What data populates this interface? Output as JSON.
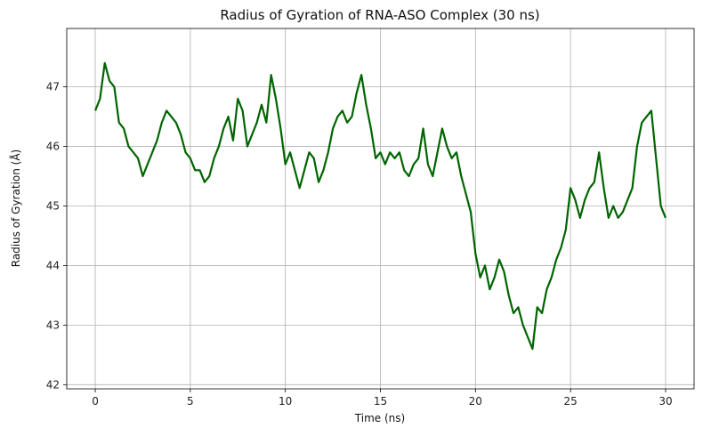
{
  "chart_data": {
    "type": "line",
    "title": "Radius of Gyration of RNA-ASO Complex (30 ns)",
    "xlabel": "Time (ns)",
    "ylabel": "Radius of Gyration (Å)",
    "xlim": [
      -1.5,
      31.5
    ],
    "ylim": [
      41.93,
      47.98
    ],
    "xticks": [
      0,
      5,
      10,
      15,
      20,
      25,
      30
    ],
    "yticks": [
      42,
      43,
      44,
      45,
      46,
      47
    ],
    "grid": true,
    "line_color": "#006400",
    "series": [
      {
        "x": [
          0,
          0.25,
          0.5,
          0.75,
          1,
          1.25,
          1.5,
          1.75,
          2,
          2.25,
          2.5,
          2.75,
          3,
          3.25,
          3.5,
          3.75,
          4,
          4.25,
          4.5,
          4.75,
          5,
          5.25,
          5.5,
          5.75,
          6,
          6.25,
          6.5,
          6.75,
          7,
          7.25,
          7.5,
          7.75,
          8,
          8.25,
          8.5,
          8.75,
          9,
          9.25,
          9.5,
          9.75,
          10,
          10.25,
          10.5,
          10.75,
          11,
          11.25,
          11.5,
          11.75,
          12,
          12.25,
          12.5,
          12.75,
          13,
          13.25,
          13.5,
          13.75,
          14,
          14.25,
          14.5,
          14.75,
          15,
          15.25,
          15.5,
          15.75,
          16,
          16.25,
          16.5,
          16.75,
          17,
          17.25,
          17.5,
          17.75,
          18,
          18.25,
          18.5,
          18.75,
          19,
          19.25,
          19.5,
          19.75,
          20,
          20.25,
          20.5,
          20.75,
          21,
          21.25,
          21.5,
          21.75,
          22,
          22.25,
          22.5,
          22.75,
          23,
          23.25,
          23.5,
          23.75,
          24,
          24.25,
          24.5,
          24.75,
          25,
          25.25,
          25.5,
          25.75,
          26,
          26.25,
          26.5,
          26.75,
          27,
          27.25,
          27.5,
          27.75,
          28,
          28.25,
          28.5,
          28.75,
          29,
          29.25,
          29.5,
          29.75,
          30
        ],
        "y": [
          46.6,
          46.8,
          47.4,
          47.1,
          47.0,
          46.4,
          46.3,
          46.0,
          45.9,
          45.8,
          45.5,
          45.7,
          45.9,
          46.1,
          46.4,
          46.6,
          46.5,
          46.4,
          46.2,
          45.9,
          45.8,
          45.6,
          45.6,
          45.4,
          45.5,
          45.8,
          46.0,
          46.3,
          46.5,
          46.1,
          46.8,
          46.6,
          46.0,
          46.2,
          46.4,
          46.7,
          46.4,
          47.2,
          46.8,
          46.3,
          45.7,
          45.9,
          45.6,
          45.3,
          45.6,
          45.9,
          45.8,
          45.4,
          45.6,
          45.9,
          46.3,
          46.5,
          46.6,
          46.4,
          46.5,
          46.9,
          47.2,
          46.7,
          46.3,
          45.8,
          45.9,
          45.7,
          45.9,
          45.8,
          45.9,
          45.6,
          45.5,
          45.7,
          45.8,
          46.3,
          45.7,
          45.5,
          45.9,
          46.3,
          46.0,
          45.8,
          45.9,
          45.5,
          45.2,
          44.9,
          44.2,
          43.8,
          44.0,
          43.6,
          43.8,
          44.1,
          43.9,
          43.5,
          43.2,
          43.3,
          43.0,
          42.8,
          42.6,
          43.3,
          43.2,
          43.6,
          43.8,
          44.1,
          44.3,
          44.6,
          45.3,
          45.1,
          44.8,
          45.1,
          45.3,
          45.4,
          45.9,
          45.3,
          44.8,
          45.0,
          44.8,
          44.9,
          45.1,
          45.3,
          46.0,
          46.4,
          46.5,
          46.6,
          45.8,
          45.0,
          44.8
        ]
      }
    ]
  }
}
